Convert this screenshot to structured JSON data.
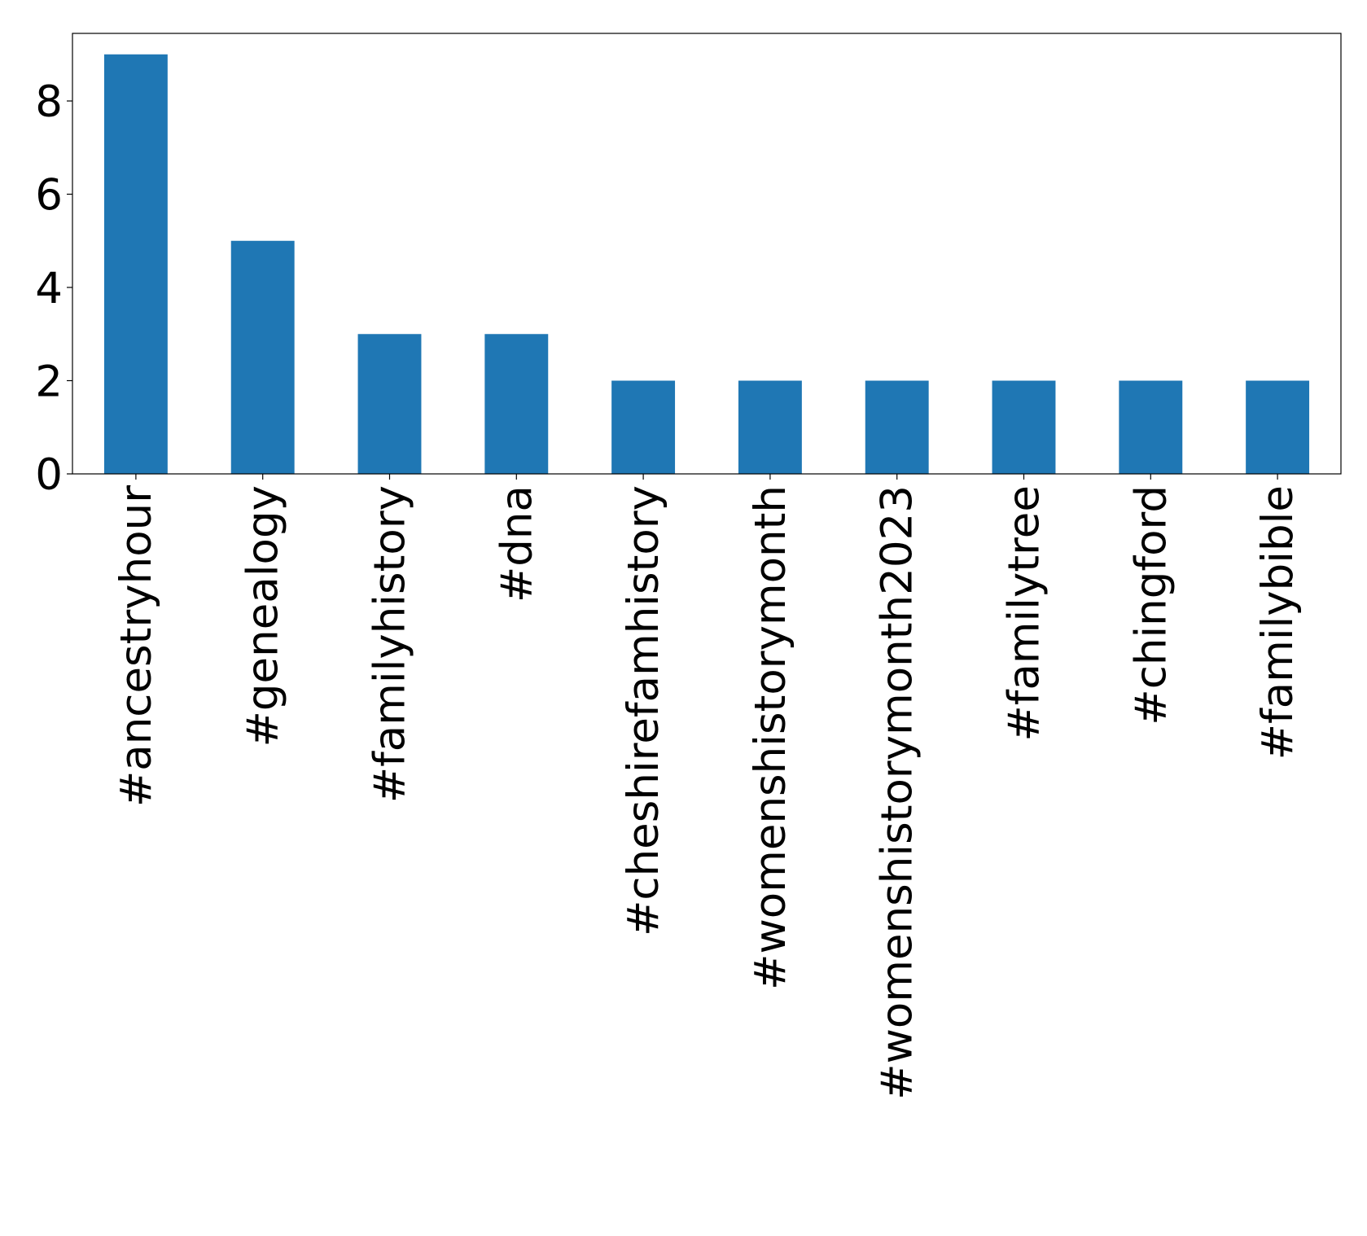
{
  "chart_data": {
    "type": "bar",
    "categories": [
      "#ancestryhour",
      "#genealogy",
      "#familyhistory",
      "#dna",
      "#cheshirefamhistory",
      "#womenshistorymonth",
      "#womenshistorymonth2023",
      "#familytree",
      "#chingford",
      "#familybible"
    ],
    "values": [
      9,
      5,
      3,
      3,
      2,
      2,
      2,
      2,
      2,
      2
    ],
    "color": "#1f77b4",
    "ylim": [
      0,
      9.45
    ],
    "yticks": [
      0,
      2,
      4,
      6,
      8
    ],
    "grid": false
  }
}
